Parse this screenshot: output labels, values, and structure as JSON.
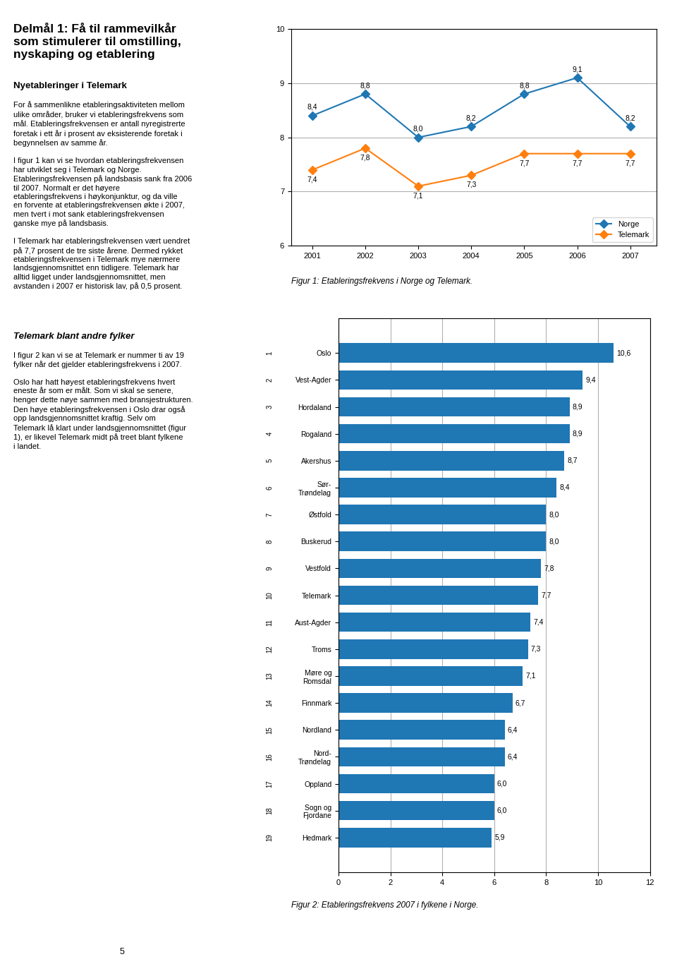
{
  "chart_data": [
    {
      "type": "line",
      "title": "Figur 1: Etableringsfrekvens i Norge og Telemark.",
      "x": [
        2001,
        2002,
        2003,
        2004,
        2005,
        2006,
        2007
      ],
      "xlim": [
        2000.6,
        2007.5
      ],
      "xticks": [
        2001,
        2002,
        2003,
        2004,
        2005,
        2006,
        2007
      ],
      "ylim": [
        6,
        10
      ],
      "yticks": [
        6,
        7,
        8,
        9,
        10
      ],
      "grid": "y",
      "legend": "lower right",
      "data_labels": true,
      "series": [
        {
          "name": "Norge",
          "marker": "diamond",
          "values": [
            8.4,
            8.8,
            8.0,
            8.2,
            8.8,
            9.1,
            8.2
          ],
          "value_labels": [
            "8,4",
            "8,8",
            "8,0",
            "8,2",
            "8,8",
            "9,1",
            "8,2"
          ]
        },
        {
          "name": "Telemark",
          "marker": "diamond",
          "values": [
            7.4,
            7.8,
            7.1,
            7.3,
            7.7,
            7.7,
            7.7
          ],
          "value_labels": [
            "7,4",
            "7,8",
            "7,1",
            "7,3",
            "7,7",
            "7,7",
            "7,7"
          ]
        }
      ],
      "annotations": [
        "Delmål 1: Få til rammevilkår\nsom stimulerer til omstilling,\nnyskaping og etablering",
        "Nyetableringer i Telemark",
        "For å sammenlikne etableringsaktiviteten mellom\nulike områder, bruker vi etableringsfrekvens som\nmål. Etableringsfrekvensen er antall nyregistrerte\nforetak i ett år i prosent av eksisterende foretak i\nbegynnelsen av samme år.\n\nI figur 1 kan vi se hvordan etableringsfrekvensen\nhar utviklet seg i Telemark og Norge.\nEtableringsfrekvensen på landsbasis sank fra 2006\ntil 2007. Normalt er det høyere\netableringsfrekvens i høykonjunktur, og da ville\nen forvente at etableringsfrekvensen økte i 2007,\nmen tvert i mot sank etableringsfrekvensen\nganske mye på landsbasis.\n\nI Telemark har etableringsfrekvensen vært uendret\npå 7,7 prosent de tre siste årene. Dermed rykket\netableringsfrekvensen i Telemark mye nærmere\nlandsgjennomsnittet enn tidligere. Telemark har\nalltid ligget under landsgjennomsnittet, men\navstanden i 2007 er historisk lav, på 0,5 prosent.",
        "Telemark blant andre fylker",
        "I figur 2 kan vi se at Telemark er nummer ti av 19\nfylker når det gjelder etableringsfrekvens i 2007.\n\nOslo har hatt høyest etableringsfrekvens hvert\neneste år som er målt. Som vi skal se senere,\nhenger dette nøye sammen med bransjestrukturen.\nDen høye etableringsfrekvensen i Oslo drar også\nopp landsgjennomsnittet kraftig. Selv om\nTelemark lå klart under landsgjennomsnittet (figur\n1), er likevel Telemark midt på treet blant fylkene\ni landet.",
        "5"
      ]
    },
    {
      "type": "bar",
      "orientation": "horizontal",
      "title": "Figur 2: Etableringsfrekvens 2007 i fylkene i Norge.",
      "categories": [
        "Oslo",
        "Vest-Agder",
        "Hordaland",
        "Rogaland",
        "Akershus",
        "Sør-\nTrøndelag",
        "Østfold",
        "Buskerud",
        "Vestfold",
        "Telemark",
        "Aust-Agder",
        "Troms",
        "Møre og\nRomsdal",
        "Finnmark",
        "Nordland",
        "Nord-\nTrøndelag",
        "Oppland",
        "Sogn og\nFjordane",
        "Hedmark"
      ],
      "values": [
        10.6,
        9.4,
        8.9,
        8.9,
        8.7,
        8.4,
        8.0,
        8.0,
        7.8,
        7.7,
        7.4,
        7.3,
        7.1,
        6.7,
        6.4,
        6.4,
        6.0,
        6.0,
        5.9
      ],
      "value_labels": [
        "10,6",
        "9,4",
        "8,9",
        "8,9",
        "8,7",
        "8,4",
        "8,0",
        "8,0",
        "7,8",
        "7,7",
        "7,4",
        "7,3",
        "7,1",
        "6,7",
        "6,4",
        "6,4",
        "6,0",
        "6,0",
        "5,9"
      ],
      "annotations": [
        "1",
        "2",
        "3",
        "4",
        "5",
        "6",
        "7",
        "8",
        "9",
        "10",
        "11",
        "12",
        "13",
        "14",
        "15",
        "16",
        "17",
        "18",
        "19"
      ],
      "xlim": [
        0,
        12
      ],
      "xticks": [
        0,
        2,
        4,
        6,
        8,
        10,
        12
      ],
      "grid": "x",
      "data_labels": true
    }
  ]
}
